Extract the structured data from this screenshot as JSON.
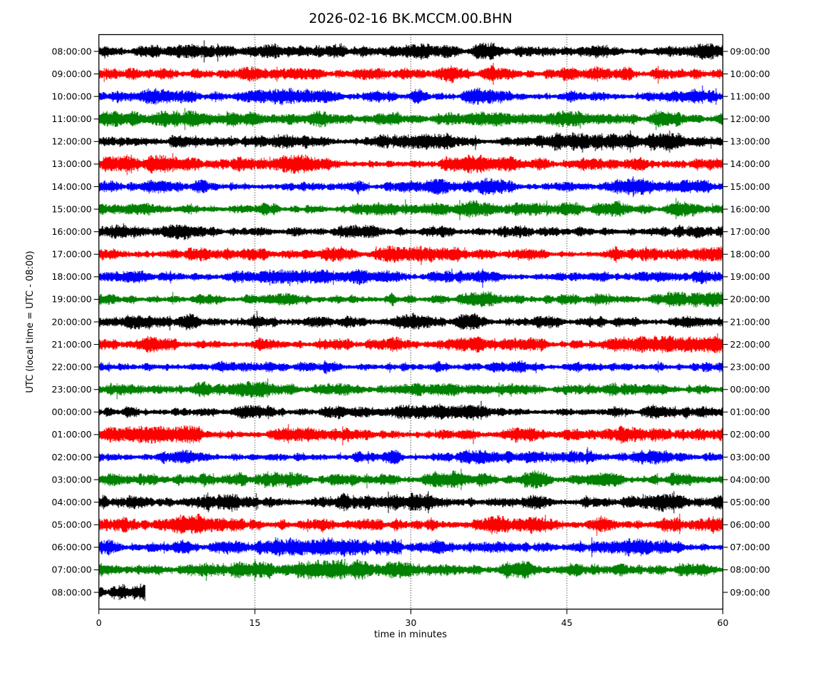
{
  "chart_data": {
    "type": "seismogram-dayplot",
    "title": "2026-02-16 BK.MCCM.00.BHN",
    "date": "2026-02-16",
    "network": "BK",
    "station": "MCCM",
    "location": "00",
    "channel": "BHN",
    "xlabel": "time in minutes",
    "ylabel": "UTC (local time = UTC - 08:00)",
    "x_range": [
      0,
      60
    ],
    "x_ticks": [
      0,
      15,
      30,
      45,
      60
    ],
    "gridlines_minutes": [
      15,
      30,
      45
    ],
    "minutes_per_row": 60,
    "timezone_offset_note": "local time = UTC - 08:00",
    "colors_cycle": [
      "#000000",
      "#ff0000",
      "#0000ff",
      "#008000"
    ],
    "axis_color": "#000000",
    "background_color": "#ffffff",
    "rows": [
      {
        "left_label": "08:00:00",
        "right_label": "09:00:00",
        "color": "#000000",
        "duration_minutes": 60,
        "amplitude": 1.0,
        "seed": 11
      },
      {
        "left_label": "09:00:00",
        "right_label": "10:00:00",
        "color": "#ff0000",
        "duration_minutes": 60,
        "amplitude": 1.05,
        "seed": 22
      },
      {
        "left_label": "10:00:00",
        "right_label": "11:00:00",
        "color": "#0000ff",
        "duration_minutes": 60,
        "amplitude": 1.0,
        "seed": 33
      },
      {
        "left_label": "11:00:00",
        "right_label": "12:00:00",
        "color": "#008000",
        "duration_minutes": 60,
        "amplitude": 0.95,
        "seed": 44
      },
      {
        "left_label": "12:00:00",
        "right_label": "13:00:00",
        "color": "#000000",
        "duration_minutes": 60,
        "amplitude": 1.0,
        "seed": 55
      },
      {
        "left_label": "13:00:00",
        "right_label": "14:00:00",
        "color": "#ff0000",
        "duration_minutes": 60,
        "amplitude": 1.05,
        "seed": 66
      },
      {
        "left_label": "14:00:00",
        "right_label": "15:00:00",
        "color": "#0000ff",
        "duration_minutes": 60,
        "amplitude": 0.95,
        "seed": 77
      },
      {
        "left_label": "15:00:00",
        "right_label": "16:00:00",
        "color": "#008000",
        "duration_minutes": 60,
        "amplitude": 0.95,
        "seed": 88
      },
      {
        "left_label": "16:00:00",
        "right_label": "17:00:00",
        "color": "#000000",
        "duration_minutes": 60,
        "amplitude": 1.0,
        "seed": 99
      },
      {
        "left_label": "17:00:00",
        "right_label": "18:00:00",
        "color": "#ff0000",
        "duration_minutes": 60,
        "amplitude": 0.95,
        "seed": 110
      },
      {
        "left_label": "18:00:00",
        "right_label": "19:00:00",
        "color": "#0000ff",
        "duration_minutes": 60,
        "amplitude": 0.9,
        "seed": 121
      },
      {
        "left_label": "19:00:00",
        "right_label": "20:00:00",
        "color": "#008000",
        "duration_minutes": 60,
        "amplitude": 0.92,
        "seed": 132
      },
      {
        "left_label": "20:00:00",
        "right_label": "21:00:00",
        "color": "#000000",
        "duration_minutes": 60,
        "amplitude": 1.0,
        "seed": 143
      },
      {
        "left_label": "21:00:00",
        "right_label": "22:00:00",
        "color": "#ff0000",
        "duration_minutes": 60,
        "amplitude": 1.0,
        "seed": 154
      },
      {
        "left_label": "22:00:00",
        "right_label": "23:00:00",
        "color": "#0000ff",
        "duration_minutes": 60,
        "amplitude": 0.9,
        "seed": 165
      },
      {
        "left_label": "23:00:00",
        "right_label": "00:00:00",
        "color": "#008000",
        "duration_minutes": 60,
        "amplitude": 0.92,
        "seed": 176
      },
      {
        "left_label": "00:00:00",
        "right_label": "01:00:00",
        "color": "#000000",
        "duration_minutes": 60,
        "amplitude": 0.95,
        "seed": 187
      },
      {
        "left_label": "01:00:00",
        "right_label": "02:00:00",
        "color": "#ff0000",
        "duration_minutes": 60,
        "amplitude": 1.0,
        "seed": 198
      },
      {
        "left_label": "02:00:00",
        "right_label": "03:00:00",
        "color": "#0000ff",
        "duration_minutes": 60,
        "amplitude": 1.0,
        "seed": 209
      },
      {
        "left_label": "03:00:00",
        "right_label": "04:00:00",
        "color": "#008000",
        "duration_minutes": 60,
        "amplitude": 1.05,
        "seed": 220
      },
      {
        "left_label": "04:00:00",
        "right_label": "05:00:00",
        "color": "#000000",
        "duration_minutes": 60,
        "amplitude": 1.15,
        "seed": 231
      },
      {
        "left_label": "05:00:00",
        "right_label": "06:00:00",
        "color": "#ff0000",
        "duration_minutes": 60,
        "amplitude": 1.25,
        "seed": 242
      },
      {
        "left_label": "06:00:00",
        "right_label": "07:00:00",
        "color": "#0000ff",
        "duration_minutes": 60,
        "amplitude": 1.1,
        "seed": 253
      },
      {
        "left_label": "07:00:00",
        "right_label": "08:00:00",
        "color": "#008000",
        "duration_minutes": 60,
        "amplitude": 1.15,
        "seed": 264
      },
      {
        "left_label": "08:00:00",
        "right_label": "09:00:00",
        "color": "#000000",
        "duration_minutes": 4.4,
        "amplitude": 1.2,
        "seed": 275,
        "end_burst": true
      }
    ]
  }
}
